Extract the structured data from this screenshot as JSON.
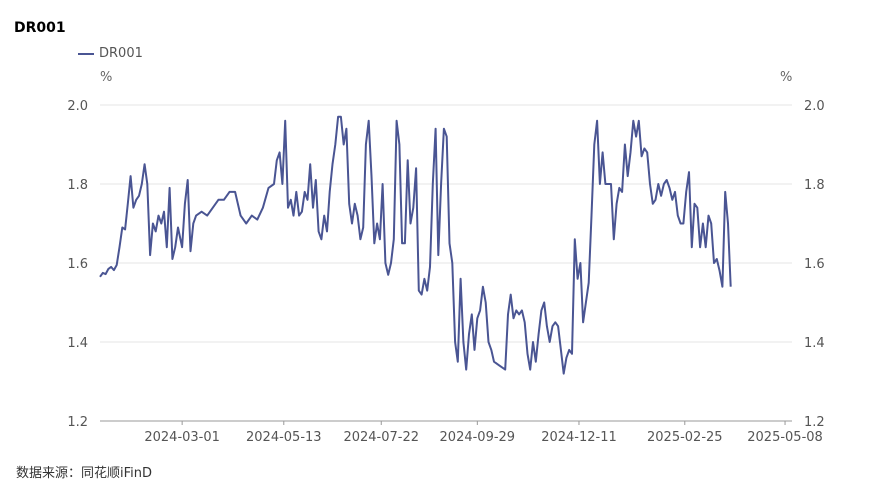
{
  "source_label": "数据来源：同花顺iFinD",
  "chart_data": {
    "type": "line",
    "title": "DR001",
    "unit_left": "%",
    "unit_right": "%",
    "ylim": [
      1.2,
      2.0
    ],
    "y_ticks": [
      "1.2",
      "1.4",
      "1.6",
      "1.8",
      "2.0"
    ],
    "x_range": [
      "2024-01-02",
      "2025-05-13"
    ],
    "x_tick_labels": [
      "2024-03-01",
      "2024-05-13",
      "2024-07-22",
      "2024-09-29",
      "2024-12-11",
      "2025-02-25",
      "2025-05-08"
    ],
    "grid": true,
    "legend": "top-left",
    "color": "#4a5593",
    "series": [
      {
        "name": "DR001",
        "points": [
          [
            "2024-01-02",
            1.565
          ],
          [
            "2024-01-04",
            1.575
          ],
          [
            "2024-01-06",
            1.572
          ],
          [
            "2024-01-08",
            1.585
          ],
          [
            "2024-01-10",
            1.59
          ],
          [
            "2024-01-12",
            1.582
          ],
          [
            "2024-01-14",
            1.595
          ],
          [
            "2024-01-16",
            1.64
          ],
          [
            "2024-01-18",
            1.69
          ],
          [
            "2024-01-20",
            1.685
          ],
          [
            "2024-01-22",
            1.75
          ],
          [
            "2024-01-24",
            1.82
          ],
          [
            "2024-01-26",
            1.74
          ],
          [
            "2024-01-28",
            1.76
          ],
          [
            "2024-01-30",
            1.77
          ],
          [
            "2024-02-01",
            1.8
          ],
          [
            "2024-02-03",
            1.85
          ],
          [
            "2024-02-05",
            1.8
          ],
          [
            "2024-02-07",
            1.62
          ],
          [
            "2024-02-09",
            1.7
          ],
          [
            "2024-02-11",
            1.68
          ],
          [
            "2024-02-13",
            1.72
          ],
          [
            "2024-02-15",
            1.7
          ],
          [
            "2024-02-17",
            1.73
          ],
          [
            "2024-02-19",
            1.64
          ],
          [
            "2024-02-21",
            1.79
          ],
          [
            "2024-02-23",
            1.61
          ],
          [
            "2024-02-25",
            1.64
          ],
          [
            "2024-02-27",
            1.69
          ],
          [
            "2024-03-01",
            1.64
          ],
          [
            "2024-03-03",
            1.75
          ],
          [
            "2024-03-05",
            1.81
          ],
          [
            "2024-03-07",
            1.63
          ],
          [
            "2024-03-09",
            1.7
          ],
          [
            "2024-03-11",
            1.72
          ],
          [
            "2024-03-15",
            1.73
          ],
          [
            "2024-03-19",
            1.72
          ],
          [
            "2024-03-23",
            1.74
          ],
          [
            "2024-03-27",
            1.76
          ],
          [
            "2024-03-31",
            1.76
          ],
          [
            "2024-04-04",
            1.78
          ],
          [
            "2024-04-08",
            1.78
          ],
          [
            "2024-04-12",
            1.72
          ],
          [
            "2024-04-16",
            1.7
          ],
          [
            "2024-04-20",
            1.72
          ],
          [
            "2024-04-24",
            1.71
          ],
          [
            "2024-04-28",
            1.74
          ],
          [
            "2024-05-02",
            1.79
          ],
          [
            "2024-05-06",
            1.8
          ],
          [
            "2024-05-08",
            1.86
          ],
          [
            "2024-05-10",
            1.88
          ],
          [
            "2024-05-12",
            1.8
          ],
          [
            "2024-05-14",
            1.96
          ],
          [
            "2024-05-16",
            1.74
          ],
          [
            "2024-05-18",
            1.76
          ],
          [
            "2024-05-20",
            1.72
          ],
          [
            "2024-05-22",
            1.78
          ],
          [
            "2024-05-24",
            1.72
          ],
          [
            "2024-05-26",
            1.73
          ],
          [
            "2024-05-28",
            1.78
          ],
          [
            "2024-05-30",
            1.76
          ],
          [
            "2024-06-01",
            1.85
          ],
          [
            "2024-06-03",
            1.74
          ],
          [
            "2024-06-05",
            1.81
          ],
          [
            "2024-06-07",
            1.68
          ],
          [
            "2024-06-09",
            1.66
          ],
          [
            "2024-06-11",
            1.72
          ],
          [
            "2024-06-13",
            1.68
          ],
          [
            "2024-06-15",
            1.78
          ],
          [
            "2024-06-17",
            1.85
          ],
          [
            "2024-06-19",
            1.9
          ],
          [
            "2024-06-21",
            1.97
          ],
          [
            "2024-06-23",
            1.97
          ],
          [
            "2024-06-25",
            1.9
          ],
          [
            "2024-06-27",
            1.94
          ],
          [
            "2024-06-29",
            1.75
          ],
          [
            "2024-07-01",
            1.7
          ],
          [
            "2024-07-03",
            1.75
          ],
          [
            "2024-07-05",
            1.72
          ],
          [
            "2024-07-07",
            1.66
          ],
          [
            "2024-07-09",
            1.69
          ],
          [
            "2024-07-11",
            1.9
          ],
          [
            "2024-07-13",
            1.96
          ],
          [
            "2024-07-15",
            1.82
          ],
          [
            "2024-07-17",
            1.65
          ],
          [
            "2024-07-19",
            1.7
          ],
          [
            "2024-07-21",
            1.66
          ],
          [
            "2024-07-23",
            1.8
          ],
          [
            "2024-07-25",
            1.6
          ],
          [
            "2024-07-27",
            1.57
          ],
          [
            "2024-07-29",
            1.6
          ],
          [
            "2024-07-31",
            1.66
          ],
          [
            "2024-08-02",
            1.96
          ],
          [
            "2024-08-04",
            1.9
          ],
          [
            "2024-08-06",
            1.65
          ],
          [
            "2024-08-08",
            1.65
          ],
          [
            "2024-08-10",
            1.86
          ],
          [
            "2024-08-12",
            1.7
          ],
          [
            "2024-08-14",
            1.74
          ],
          [
            "2024-08-16",
            1.84
          ],
          [
            "2024-08-18",
            1.53
          ],
          [
            "2024-08-20",
            1.52
          ],
          [
            "2024-08-22",
            1.56
          ],
          [
            "2024-08-24",
            1.53
          ],
          [
            "2024-08-26",
            1.59
          ],
          [
            "2024-08-28",
            1.8
          ],
          [
            "2024-08-30",
            1.94
          ],
          [
            "2024-09-01",
            1.62
          ],
          [
            "2024-09-03",
            1.8
          ],
          [
            "2024-09-05",
            1.94
          ],
          [
            "2024-09-07",
            1.92
          ],
          [
            "2024-09-09",
            1.65
          ],
          [
            "2024-09-11",
            1.6
          ],
          [
            "2024-09-13",
            1.4
          ],
          [
            "2024-09-15",
            1.35
          ],
          [
            "2024-09-17",
            1.56
          ],
          [
            "2024-09-19",
            1.4
          ],
          [
            "2024-09-21",
            1.33
          ],
          [
            "2024-09-23",
            1.42
          ],
          [
            "2024-09-25",
            1.47
          ],
          [
            "2024-09-27",
            1.38
          ],
          [
            "2024-09-29",
            1.46
          ],
          [
            "2024-10-01",
            1.48
          ],
          [
            "2024-10-03",
            1.54
          ],
          [
            "2024-10-05",
            1.5
          ],
          [
            "2024-10-07",
            1.4
          ],
          [
            "2024-10-09",
            1.38
          ],
          [
            "2024-10-11",
            1.35
          ],
          [
            "2024-10-15",
            1.34
          ],
          [
            "2024-10-19",
            1.33
          ],
          [
            "2024-10-21",
            1.47
          ],
          [
            "2024-10-23",
            1.52
          ],
          [
            "2024-10-25",
            1.46
          ],
          [
            "2024-10-27",
            1.48
          ],
          [
            "2024-10-29",
            1.47
          ],
          [
            "2024-10-31",
            1.48
          ],
          [
            "2024-11-02",
            1.45
          ],
          [
            "2024-11-04",
            1.37
          ],
          [
            "2024-11-06",
            1.33
          ],
          [
            "2024-11-08",
            1.4
          ],
          [
            "2024-11-10",
            1.35
          ],
          [
            "2024-11-12",
            1.42
          ],
          [
            "2024-11-14",
            1.48
          ],
          [
            "2024-11-16",
            1.5
          ],
          [
            "2024-11-18",
            1.44
          ],
          [
            "2024-11-20",
            1.4
          ],
          [
            "2024-11-22",
            1.44
          ],
          [
            "2024-11-24",
            1.45
          ],
          [
            "2024-11-26",
            1.44
          ],
          [
            "2024-11-28",
            1.38
          ],
          [
            "2024-11-30",
            1.32
          ],
          [
            "2024-12-02",
            1.36
          ],
          [
            "2024-12-04",
            1.38
          ],
          [
            "2024-12-06",
            1.37
          ],
          [
            "2024-12-08",
            1.66
          ],
          [
            "2024-12-10",
            1.56
          ],
          [
            "2024-12-12",
            1.6
          ],
          [
            "2024-12-14",
            1.45
          ],
          [
            "2024-12-16",
            1.5
          ],
          [
            "2024-12-18",
            1.55
          ],
          [
            "2024-12-20",
            1.72
          ],
          [
            "2024-12-22",
            1.9
          ],
          [
            "2024-12-24",
            1.96
          ],
          [
            "2024-12-26",
            1.8
          ],
          [
            "2024-12-28",
            1.88
          ],
          [
            "2024-12-30",
            1.8
          ],
          [
            "2025-01-03",
            1.8
          ],
          [
            "2025-01-05",
            1.66
          ],
          [
            "2025-01-07",
            1.75
          ],
          [
            "2025-01-09",
            1.79
          ],
          [
            "2025-01-11",
            1.78
          ],
          [
            "2025-01-13",
            1.9
          ],
          [
            "2025-01-15",
            1.82
          ],
          [
            "2025-01-17",
            1.88
          ],
          [
            "2025-01-19",
            1.96
          ],
          [
            "2025-01-21",
            1.92
          ],
          [
            "2025-01-23",
            1.96
          ],
          [
            "2025-01-25",
            1.87
          ],
          [
            "2025-01-27",
            1.89
          ],
          [
            "2025-01-29",
            1.88
          ],
          [
            "2025-01-31",
            1.8
          ],
          [
            "2025-02-02",
            1.75
          ],
          [
            "2025-02-04",
            1.76
          ],
          [
            "2025-02-06",
            1.8
          ],
          [
            "2025-02-08",
            1.77
          ],
          [
            "2025-02-10",
            1.8
          ],
          [
            "2025-02-12",
            1.81
          ],
          [
            "2025-02-14",
            1.79
          ],
          [
            "2025-02-16",
            1.76
          ],
          [
            "2025-02-18",
            1.78
          ],
          [
            "2025-02-20",
            1.72
          ],
          [
            "2025-02-22",
            1.7
          ],
          [
            "2025-02-24",
            1.7
          ],
          [
            "2025-02-26",
            1.78
          ],
          [
            "2025-02-28",
            1.83
          ],
          [
            "2025-03-02",
            1.64
          ],
          [
            "2025-03-04",
            1.75
          ],
          [
            "2025-03-06",
            1.74
          ],
          [
            "2025-03-08",
            1.64
          ],
          [
            "2025-03-10",
            1.7
          ],
          [
            "2025-03-12",
            1.64
          ],
          [
            "2025-03-14",
            1.72
          ],
          [
            "2025-03-16",
            1.7
          ],
          [
            "2025-03-18",
            1.6
          ],
          [
            "2025-03-20",
            1.61
          ],
          [
            "2025-03-22",
            1.58
          ],
          [
            "2025-03-24",
            1.54
          ],
          [
            "2025-03-26",
            1.78
          ],
          [
            "2025-03-28",
            1.7
          ],
          [
            "2025-03-30",
            1.54
          ]
        ]
      }
    ]
  }
}
